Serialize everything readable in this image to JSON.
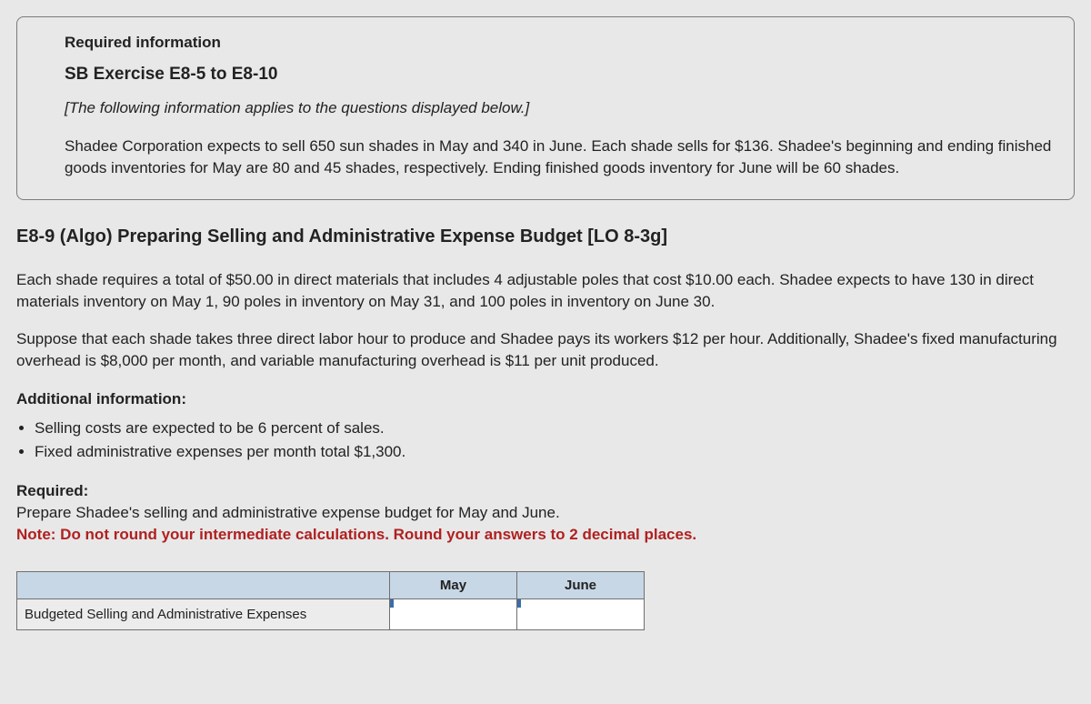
{
  "info_box": {
    "required_label": "Required information",
    "sb_title": "SB Exercise E8-5 to E8-10",
    "italic_note": "[The following information applies to the questions displayed below.]",
    "paragraph": "Shadee Corporation expects to sell 650 sun shades in May and 340 in June. Each shade sells for $136. Shadee's beginning and ending finished goods inventories for May are 80 and 45 shades, respectively. Ending finished goods inventory for June will be 60 shades."
  },
  "section": {
    "title": "E8-9 (Algo) Preparing Selling and Administrative Expense Budget [LO 8-3g]",
    "p1": "Each shade requires a total of $50.00 in direct materials that includes 4 adjustable poles that cost $10.00 each. Shadee expects to have 130 in direct materials inventory on May 1, 90 poles in inventory on May 31, and 100 poles in inventory on June 30.",
    "p2": "Suppose that each shade takes three direct labor hour to produce and Shadee pays its workers $12 per hour. Additionally, Shadee's fixed manufacturing overhead is $8,000 per month, and  variable manufacturing overhead is $11 per unit produced.",
    "additional_label": "Additional information:",
    "bullets": [
      "Selling costs are expected to be 6 percent of sales.",
      "Fixed administrative expenses per month total $1,300."
    ],
    "required_label": "Required:",
    "required_text": "Prepare Shadee's selling and administrative expense budget for May and June.",
    "note_text": "Note: Do not round your intermediate calculations. Round your answers to 2 decimal places."
  },
  "table": {
    "col_may": "May",
    "col_june": "June",
    "row_label": "Budgeted Selling and Administrative Expenses",
    "may_value": "",
    "june_value": ""
  }
}
